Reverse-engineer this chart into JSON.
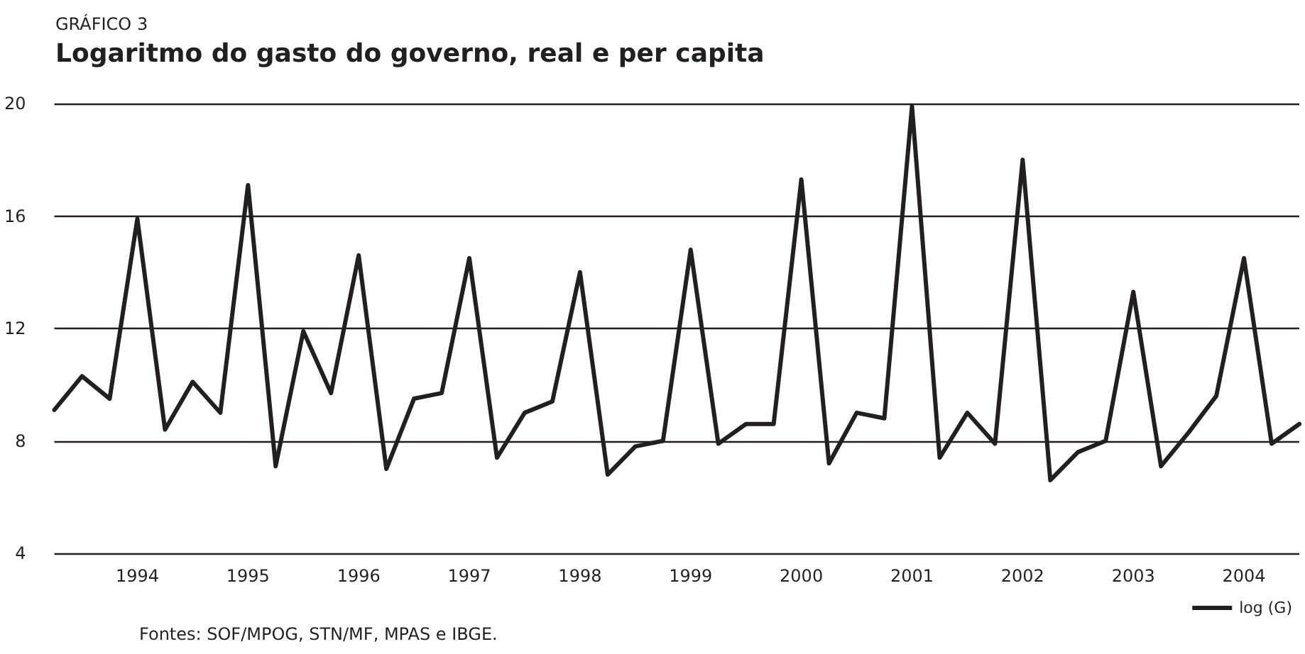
{
  "chart_data": {
    "type": "line",
    "title": "Logaritmo do gasto do governo, real e per capita",
    "subtitle": "GRÁFICO 3",
    "categories": [
      null,
      null,
      null,
      "1994",
      null,
      null,
      null,
      "1995",
      null,
      null,
      null,
      "1996",
      null,
      null,
      null,
      "1997",
      null,
      null,
      null,
      "1998",
      null,
      null,
      null,
      "1999",
      null,
      null,
      null,
      "2000",
      null,
      null,
      null,
      "2001",
      null,
      null,
      null,
      "2002",
      null,
      null,
      null,
      "2003",
      null,
      null,
      null,
      "2004",
      null,
      null
    ],
    "series": [
      {
        "name": "log (G)",
        "color": "#231f20",
        "values": [
          9.1,
          10.3,
          9.5,
          15.9,
          8.4,
          10.1,
          9.0,
          17.1,
          7.1,
          11.9,
          9.7,
          14.6,
          7.0,
          9.5,
          9.7,
          14.5,
          7.4,
          9.0,
          9.4,
          14.0,
          6.8,
          7.8,
          8.0,
          14.8,
          7.9,
          8.6,
          8.6,
          17.3,
          7.2,
          9.0,
          8.8,
          19.9,
          7.4,
          9.0,
          7.9,
          18.0,
          6.6,
          7.6,
          8.0,
          13.3,
          7.1,
          8.3,
          9.6,
          14.5,
          7.9,
          8.6
        ]
      }
    ],
    "ylim": [
      4,
      20
    ],
    "yticks": [
      4,
      8,
      12,
      16,
      20
    ],
    "grid": "y",
    "legend": "bottom right",
    "marker": "none",
    "line_style": "solid",
    "annotations": [
      "Fontes: SOF/MPOG, STN/MF, MPAS e IBGE."
    ]
  }
}
